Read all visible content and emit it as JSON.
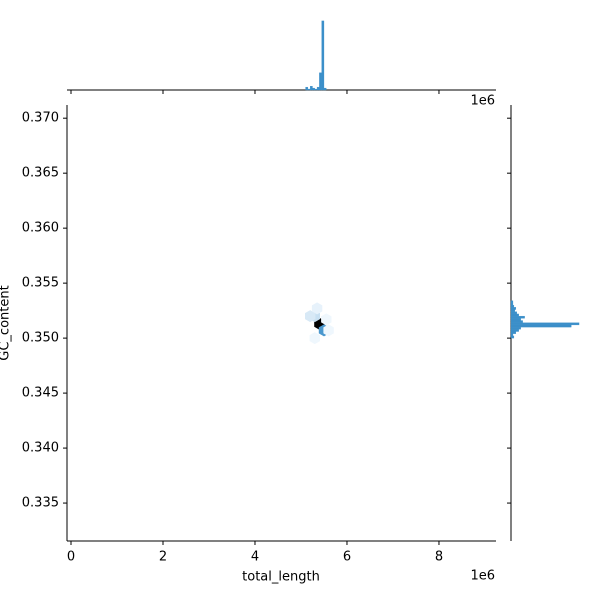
{
  "chart_data": {
    "type": "hexbin",
    "x_label": "total_length",
    "y_label": "GC_content",
    "x_offset_label": "1e6",
    "xlim": [
      -87000,
      9240000
    ],
    "xticks": [
      {
        "value": 0,
        "label": "0"
      },
      {
        "value": 2000000,
        "label": "2"
      },
      {
        "value": 4000000,
        "label": "4"
      },
      {
        "value": 6000000,
        "label": "6"
      },
      {
        "value": 8000000,
        "label": "8"
      }
    ],
    "ylim": [
      0.33155,
      0.3712
    ],
    "yticks": [
      {
        "value": 0.335,
        "label": "0.335"
      },
      {
        "value": 0.34,
        "label": "0.340"
      },
      {
        "value": 0.345,
        "label": "0.345"
      },
      {
        "value": 0.35,
        "label": "0.350"
      },
      {
        "value": 0.355,
        "label": "0.355"
      },
      {
        "value": 0.36,
        "label": "0.360"
      },
      {
        "value": 0.365,
        "label": "0.365"
      },
      {
        "value": 0.37,
        "label": "0.370"
      }
    ],
    "color": "#3b8fc9",
    "hexbins": {
      "x": [
        5400000,
        5500000,
        5300000,
        5200000,
        5350000,
        5550000,
        5300000,
        5600000
      ],
      "y": [
        0.3513,
        0.3507,
        0.352,
        0.352,
        0.3527,
        0.3517,
        0.35,
        0.3507
      ],
      "counts": [
        40,
        22,
        6,
        4,
        2,
        1,
        1,
        1
      ]
    },
    "x_hist": {
      "bins": [
        5100000,
        5150000,
        5200000,
        5250000,
        5300000,
        5350000,
        5400000,
        5450000,
        5500000,
        5550000
      ],
      "counts": [
        3,
        1,
        4,
        2,
        1,
        3,
        18,
        72,
        2
      ],
      "count_lim": [
        0,
        75
      ]
    },
    "y_hist": {
      "bins": [
        0.35,
        0.3502,
        0.3504,
        0.3506,
        0.3508,
        0.351,
        0.3512,
        0.3514,
        0.3516,
        0.3518,
        0.352,
        0.3522,
        0.3524,
        0.3526,
        0.3528,
        0.353,
        0.3532,
        0.3534
      ],
      "counts": [
        3,
        2,
        5,
        8,
        10,
        62,
        70,
        12,
        10,
        14,
        8,
        6,
        4,
        5,
        3,
        2,
        2
      ],
      "count_lim": [
        0,
        72
      ]
    }
  }
}
